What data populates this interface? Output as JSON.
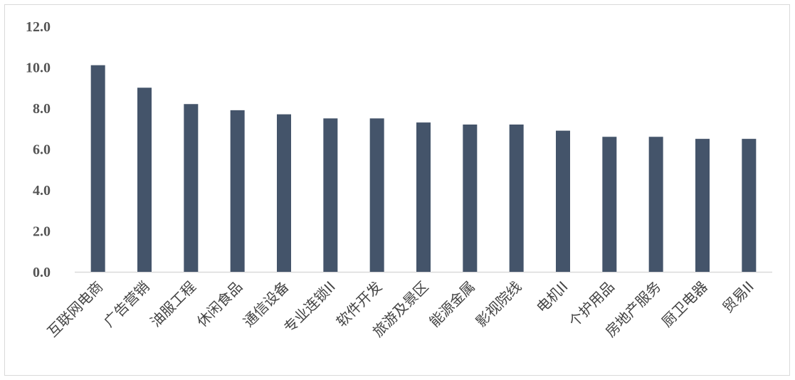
{
  "chart_data": {
    "type": "bar",
    "categories": [
      "互联网电商",
      "广告营销",
      "油服工程",
      "休闲食品",
      "通信设备",
      "专业连锁II",
      "软件开发",
      "旅游及景区",
      "能源金属",
      "影视院线",
      "电机II",
      "个护用品",
      "房地产服务",
      "厨卫电器",
      "贸易II"
    ],
    "values": [
      10.1,
      9.0,
      8.2,
      7.9,
      7.7,
      7.5,
      7.5,
      7.3,
      7.2,
      7.2,
      6.9,
      6.6,
      6.6,
      6.5,
      6.5
    ],
    "yticks": [
      "0.0",
      "2.0",
      "4.0",
      "6.0",
      "8.0",
      "10.0",
      "12.0"
    ],
    "ylim": [
      0,
      12
    ],
    "grid": false,
    "legend": "none",
    "bar_color": "#44546a",
    "axis_color": "#d9d9d9"
  }
}
